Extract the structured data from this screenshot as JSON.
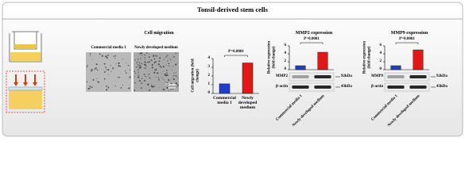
{
  "title": "Tonsil-derived stem cells",
  "migration": {
    "title": "Cell migration",
    "image_labels": [
      "Commercial media 1",
      "Newly developed medium"
    ],
    "scale_bar": "0.5mm"
  },
  "chart_data": [
    {
      "type": "bar",
      "ylabel": "Cell migration (fold change)",
      "categories": [
        "Commercial media 1",
        "Newly developed medium"
      ],
      "values": [
        1.1,
        3.5
      ],
      "colors": [
        "#1f3fc4",
        "#e01818"
      ],
      "ylim": [
        0,
        4
      ],
      "yticks": [
        0,
        1,
        2,
        3,
        4
      ],
      "annotation": "P=0.0001"
    },
    {
      "type": "bar",
      "title": "MMP2 expression",
      "ylabel": "Relative expression (fold change)",
      "categories": [
        "Commercial media 1",
        "Newly developed medium"
      ],
      "values": [
        1,
        4.4
      ],
      "colors": [
        "#1f3fc4",
        "#e01818"
      ],
      "ylim": [
        0,
        6
      ],
      "yticks": [
        0,
        2,
        4,
        6
      ],
      "annotation": "P=0.0001",
      "blots": [
        {
          "name": "MMP2",
          "size": "92kDa"
        },
        {
          "name": "β-actin",
          "size": "43kDa"
        }
      ]
    },
    {
      "type": "bar",
      "title": "MMP9 expression",
      "ylabel": "Relative expression (fold change)",
      "categories": [
        "Commercial media 1",
        "Newly developed medium"
      ],
      "values": [
        1,
        5.0
      ],
      "colors": [
        "#1f3fc4",
        "#e01818"
      ],
      "ylim": [
        0,
        6
      ],
      "yticks": [
        0,
        2,
        4,
        6
      ],
      "annotation": "P=0.0001",
      "blots": [
        {
          "name": "MMP9",
          "size": "92kDa"
        },
        {
          "name": "β-actin",
          "size": "43kDa"
        }
      ]
    }
  ]
}
